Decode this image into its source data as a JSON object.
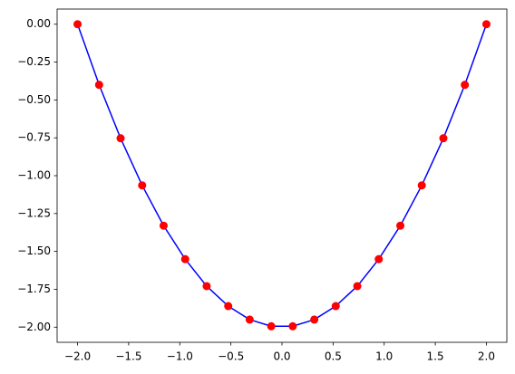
{
  "chart_data": {
    "type": "line",
    "x": [
      -2,
      -1.789,
      -1.579,
      -1.368,
      -1.158,
      -0.947,
      -0.737,
      -0.526,
      -0.316,
      -0.105,
      0.105,
      0.316,
      0.526,
      0.737,
      0.947,
      1.158,
      1.368,
      1.579,
      1.789,
      2
    ],
    "series": [
      {
        "type": "line",
        "color": "#0000ff",
        "values": [
          0,
          -0.4,
          -0.753,
          -1.064,
          -1.33,
          -1.551,
          -1.729,
          -1.861,
          -1.95,
          -1.994,
          -1.994,
          -1.95,
          -1.861,
          -1.729,
          -1.551,
          -1.33,
          -1.064,
          -0.753,
          -0.4,
          0
        ]
      },
      {
        "type": "scatter",
        "color": "#ff0000",
        "values": [
          0,
          -0.4,
          -0.753,
          -1.064,
          -1.33,
          -1.551,
          -1.729,
          -1.861,
          -1.95,
          -1.994,
          -1.994,
          -1.95,
          -1.861,
          -1.729,
          -1.551,
          -1.33,
          -1.064,
          -0.753,
          -0.4,
          0
        ]
      }
    ],
    "xlim": [
      -2.2,
      2.2
    ],
    "ylim": [
      -2.1,
      0.1
    ],
    "xticks": [
      {
        "value": -2,
        "label": "−2.0"
      },
      {
        "value": -1.5,
        "label": "−1.5"
      },
      {
        "value": -1,
        "label": "−1.0"
      },
      {
        "value": -0.5,
        "label": "−0.5"
      },
      {
        "value": 0,
        "label": "0.0"
      },
      {
        "value": 0.5,
        "label": "0.5"
      },
      {
        "value": 1,
        "label": "1.0"
      },
      {
        "value": 1.5,
        "label": "1.5"
      },
      {
        "value": 2,
        "label": "2.0"
      }
    ],
    "yticks": [
      {
        "value": 0,
        "label": "0.00"
      },
      {
        "value": -0.25,
        "label": "−0.25"
      },
      {
        "value": -0.5,
        "label": "−0.50"
      },
      {
        "value": -0.75,
        "label": "−0.75"
      },
      {
        "value": -1,
        "label": "−1.00"
      },
      {
        "value": -1.25,
        "label": "−1.25"
      },
      {
        "value": -1.5,
        "label": "−1.50"
      },
      {
        "value": -1.75,
        "label": "−1.75"
      },
      {
        "value": -2,
        "label": "−2.00"
      }
    ],
    "grid": false
  }
}
